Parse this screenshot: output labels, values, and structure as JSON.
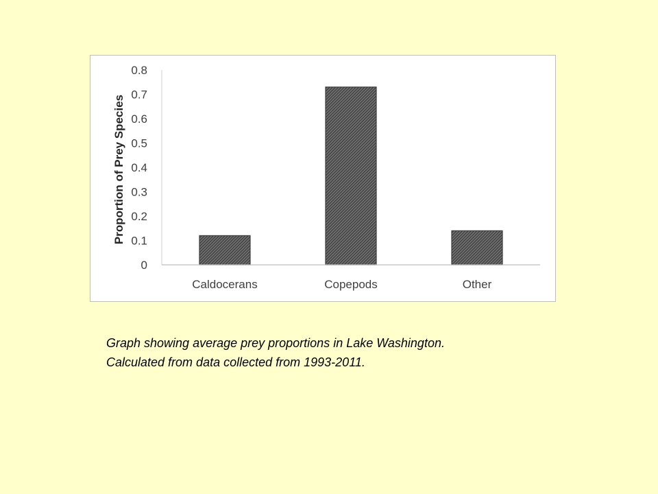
{
  "page": {
    "background_color": "#ffffcc"
  },
  "caption": {
    "line1": "Graph showing average prey proportions in Lake Washington.",
    "line2": "Calculated from data collected from 1993-2011."
  },
  "chart_data": {
    "type": "bar",
    "categories": [
      "Caldocerans",
      "Copepods",
      "Other"
    ],
    "values": [
      0.12,
      0.73,
      0.14
    ],
    "title": "",
    "xlabel": "",
    "ylabel": "Proportion of Prey Species",
    "ylim": [
      0,
      0.8
    ],
    "yticks": [
      "0",
      "0.1",
      "0.2",
      "0.3",
      "0.4",
      "0.5",
      "0.6",
      "0.7",
      "0.8"
    ],
    "grid": false,
    "legend": "none",
    "bar_fill": "hatched dark gray",
    "bar_color": "#3c3c3c"
  }
}
